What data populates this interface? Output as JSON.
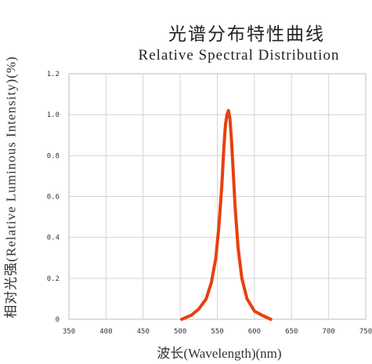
{
  "chart_data": {
    "type": "line",
    "title": "光谱分布特性曲线",
    "subtitle": "Relative Spectral Distribution",
    "xlabel": "波长(Wavelength)(nm)",
    "ylabel": "相对光强(Relative Luminous Intensity)(%)",
    "xlim": [
      350,
      750
    ],
    "ylim": [
      0,
      1.2
    ],
    "x_ticks": [
      "350",
      "400",
      "450",
      "500",
      "550",
      "600",
      "650",
      "700",
      "750"
    ],
    "y_ticks": [
      "0",
      "0.2",
      "0.4",
      "0.6",
      "0.8",
      "1.0",
      "1.2"
    ],
    "grid": true,
    "line_color": "#e8400c",
    "series": [
      {
        "x": [
          502,
          515,
          525,
          535,
          542,
          548,
          552,
          556,
          559,
          561,
          563,
          565,
          567,
          569,
          571,
          574,
          578,
          583,
          590,
          600,
          610,
          622
        ],
        "y": [
          0.0,
          0.02,
          0.05,
          0.1,
          0.18,
          0.3,
          0.45,
          0.65,
          0.85,
          0.95,
          1.0,
          1.02,
          0.98,
          0.88,
          0.75,
          0.55,
          0.35,
          0.2,
          0.1,
          0.04,
          0.02,
          0.0
        ]
      }
    ]
  }
}
